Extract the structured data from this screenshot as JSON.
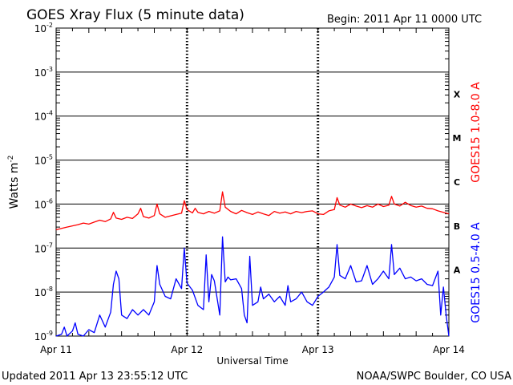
{
  "header": {
    "title": "GOES Xray Flux (5 minute data)",
    "begin": "Begin:  2011 Apr 11 0000 UTC"
  },
  "footer": {
    "updated": "Updated 2011 Apr 13 23:55:12 UTC",
    "credit": "NOAA/SWPC Boulder, CO USA"
  },
  "chart_data": {
    "type": "line",
    "title": "GOES Xray Flux (5 minute data)",
    "xlabel": "Universal Time",
    "ylabel_base": "Watts m",
    "ylabel_exp": "-2",
    "y_scale": "log",
    "ylim": [
      1e-09,
      0.01
    ],
    "xlim": [
      0,
      72
    ],
    "x_unit": "hours since 2011 Apr 11 0000 UTC",
    "grid": true,
    "x_ticks": [
      {
        "x": 0,
        "label": "Apr 11"
      },
      {
        "x": 24,
        "label": "Apr 12"
      },
      {
        "x": 48,
        "label": "Apr 13"
      },
      {
        "x": 72,
        "label": "Apr 14"
      }
    ],
    "y_ticks": [
      {
        "exp": -9,
        "base": "10",
        "sup": "-9"
      },
      {
        "exp": -8,
        "base": "10",
        "sup": "-8"
      },
      {
        "exp": -7,
        "base": "10",
        "sup": "-7"
      },
      {
        "exp": -6,
        "base": "10",
        "sup": "-6"
      },
      {
        "exp": -5,
        "base": "10",
        "sup": "-5"
      },
      {
        "exp": -4,
        "base": "10",
        "sup": "-4"
      },
      {
        "exp": -3,
        "base": "10",
        "sup": "-3"
      },
      {
        "exp": -2,
        "base": "10",
        "sup": "-2"
      }
    ],
    "flare_classes": [
      {
        "label": "A",
        "log_center": -7.5
      },
      {
        "label": "B",
        "log_center": -6.5
      },
      {
        "label": "C",
        "log_center": -5.5
      },
      {
        "label": "M",
        "log_center": -4.5
      },
      {
        "label": "X",
        "log_center": -3.5
      }
    ],
    "series": [
      {
        "name": "GOES15 1.0-8.0 A",
        "color": "#ff0000",
        "points": [
          [
            0,
            2.6e-07
          ],
          [
            1,
            2.8e-07
          ],
          [
            2,
            3e-07
          ],
          [
            3,
            3.2e-07
          ],
          [
            4,
            3.4e-07
          ],
          [
            5,
            3.7e-07
          ],
          [
            6,
            3.5e-07
          ],
          [
            7,
            3.9e-07
          ],
          [
            8,
            4.3e-07
          ],
          [
            9,
            4e-07
          ],
          [
            10,
            4.6e-07
          ],
          [
            10.5,
            6.5e-07
          ],
          [
            11,
            4.8e-07
          ],
          [
            12,
            4.5e-07
          ],
          [
            13,
            5e-07
          ],
          [
            14,
            4.7e-07
          ],
          [
            15,
            6e-07
          ],
          [
            15.5,
            8e-07
          ],
          [
            16,
            5.2e-07
          ],
          [
            17,
            4.8e-07
          ],
          [
            18,
            5.5e-07
          ],
          [
            18.5,
            1e-06
          ],
          [
            19,
            6e-07
          ],
          [
            20,
            5e-07
          ],
          [
            21,
            5.4e-07
          ],
          [
            22,
            5.8e-07
          ],
          [
            23,
            6.2e-07
          ],
          [
            23.5,
            1.2e-06
          ],
          [
            24,
            7.5e-07
          ],
          [
            25,
            6.3e-07
          ],
          [
            25.5,
            8e-07
          ],
          [
            26,
            6.5e-07
          ],
          [
            27,
            6e-07
          ],
          [
            28,
            6.8e-07
          ],
          [
            29,
            6.2e-07
          ],
          [
            30,
            7e-07
          ],
          [
            30.5,
            1.9e-06
          ],
          [
            31,
            8.5e-07
          ],
          [
            32,
            6.8e-07
          ],
          [
            33,
            6e-07
          ],
          [
            34,
            7.2e-07
          ],
          [
            35,
            6.4e-07
          ],
          [
            36,
            5.8e-07
          ],
          [
            37,
            6.6e-07
          ],
          [
            38,
            6e-07
          ],
          [
            39,
            5.5e-07
          ],
          [
            40,
            6.8e-07
          ],
          [
            41,
            6.2e-07
          ],
          [
            42,
            6.6e-07
          ],
          [
            43,
            6e-07
          ],
          [
            44,
            6.8e-07
          ],
          [
            45,
            6.4e-07
          ],
          [
            46,
            6.8e-07
          ],
          [
            47,
            7e-07
          ],
          [
            48,
            6e-07
          ],
          [
            49,
            5.8e-07
          ],
          [
            50,
            7e-07
          ],
          [
            51,
            7.5e-07
          ],
          [
            51.5,
            1.4e-06
          ],
          [
            52,
            9.5e-07
          ],
          [
            53,
            8.5e-07
          ],
          [
            54,
            1e-06
          ],
          [
            55,
            9e-07
          ],
          [
            56,
            8.3e-07
          ],
          [
            57,
            9.2e-07
          ],
          [
            58,
            8.5e-07
          ],
          [
            59,
            1e-06
          ],
          [
            60,
            8.8e-07
          ],
          [
            61,
            9.4e-07
          ],
          [
            61.5,
            1.5e-06
          ],
          [
            62,
            1e-06
          ],
          [
            63,
            9e-07
          ],
          [
            64,
            1.1e-06
          ],
          [
            65,
            9.3e-07
          ],
          [
            66,
            8.5e-07
          ],
          [
            67,
            9e-07
          ],
          [
            68,
            8e-07
          ],
          [
            69,
            7.8e-07
          ],
          [
            70,
            7e-07
          ],
          [
            71,
            6.5e-07
          ],
          [
            72,
            6e-07
          ]
        ]
      },
      {
        "name": "GOES15 0.5-4.0 A",
        "color": "#0000ff",
        "points": [
          [
            0,
            1e-09
          ],
          [
            1,
            1.1e-09
          ],
          [
            1.5,
            1.6e-09
          ],
          [
            2,
            1e-09
          ],
          [
            3,
            1.3e-09
          ],
          [
            3.5,
            2e-09
          ],
          [
            4,
            1.1e-09
          ],
          [
            5,
            1e-09
          ],
          [
            6,
            1.4e-09
          ],
          [
            7,
            1.2e-09
          ],
          [
            8,
            3e-09
          ],
          [
            9,
            1.6e-09
          ],
          [
            10,
            3.5e-09
          ],
          [
            10.5,
            1.5e-08
          ],
          [
            11,
            3e-08
          ],
          [
            11.5,
            2e-08
          ],
          [
            12,
            3e-09
          ],
          [
            13,
            2.5e-09
          ],
          [
            14,
            4e-09
          ],
          [
            15,
            3e-09
          ],
          [
            16,
            4e-09
          ],
          [
            17,
            3e-09
          ],
          [
            18,
            6e-09
          ],
          [
            18.5,
            4e-08
          ],
          [
            19,
            1.5e-08
          ],
          [
            20,
            8e-09
          ],
          [
            21,
            7e-09
          ],
          [
            22,
            2e-08
          ],
          [
            23,
            1.2e-08
          ],
          [
            23.5,
            1e-07
          ],
          [
            24,
            1.6e-08
          ],
          [
            25,
            1.1e-08
          ],
          [
            26,
            5e-09
          ],
          [
            27,
            4e-09
          ],
          [
            27.5,
            7e-08
          ],
          [
            28,
            6e-09
          ],
          [
            28.5,
            2.5e-08
          ],
          [
            29,
            1.8e-08
          ],
          [
            30,
            3e-09
          ],
          [
            30.5,
            1.8e-07
          ],
          [
            31,
            1.7e-08
          ],
          [
            31.5,
            2.2e-08
          ],
          [
            32,
            1.9e-08
          ],
          [
            33,
            2e-08
          ],
          [
            34,
            1.2e-08
          ],
          [
            34.5,
            3e-09
          ],
          [
            35,
            2e-09
          ],
          [
            35.5,
            6.5e-08
          ],
          [
            36,
            5e-09
          ],
          [
            37,
            6e-09
          ],
          [
            37.5,
            1.3e-08
          ],
          [
            38,
            7e-09
          ],
          [
            39,
            9e-09
          ],
          [
            40,
            6e-09
          ],
          [
            41,
            8e-09
          ],
          [
            42,
            5e-09
          ],
          [
            42.5,
            1.4e-08
          ],
          [
            43,
            6e-09
          ],
          [
            44,
            7e-09
          ],
          [
            45,
            1e-08
          ],
          [
            46,
            6e-09
          ],
          [
            47,
            5e-09
          ],
          [
            48,
            8e-09
          ],
          [
            49,
            1e-08
          ],
          [
            50,
            1.3e-08
          ],
          [
            51,
            2.2e-08
          ],
          [
            51.5,
            1.2e-07
          ],
          [
            52,
            2.4e-08
          ],
          [
            53,
            2e-08
          ],
          [
            54,
            4e-08
          ],
          [
            55,
            1.7e-08
          ],
          [
            56,
            1.8e-08
          ],
          [
            57,
            4e-08
          ],
          [
            58,
            1.5e-08
          ],
          [
            59,
            2e-08
          ],
          [
            60,
            3e-08
          ],
          [
            61,
            2e-08
          ],
          [
            61.5,
            1.2e-07
          ],
          [
            62,
            2.5e-08
          ],
          [
            63,
            3.5e-08
          ],
          [
            64,
            2e-08
          ],
          [
            65,
            2.2e-08
          ],
          [
            66,
            1.8e-08
          ],
          [
            67,
            2e-08
          ],
          [
            68,
            1.5e-08
          ],
          [
            69,
            1.4e-08
          ],
          [
            70,
            3e-08
          ],
          [
            70.5,
            3e-09
          ],
          [
            71,
            1.3e-08
          ],
          [
            71.5,
            3e-09
          ],
          [
            72,
            1e-09
          ]
        ]
      }
    ]
  }
}
